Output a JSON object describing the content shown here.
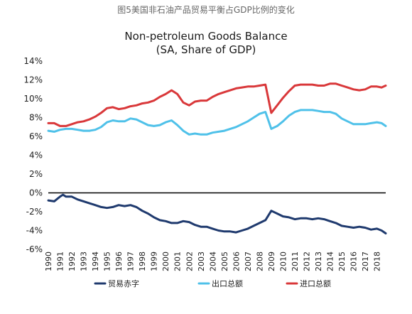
{
  "caption": "图5美国非石油产品贸易平衡占GDP比例的变化",
  "chart_data": {
    "type": "line",
    "title": "Non-petroleum Goods Balance",
    "subtitle": "(SA, Share of GDP)",
    "xlabel": "",
    "ylabel": "",
    "x_range": [
      1990,
      2018.75
    ],
    "ylim": [
      -6,
      14
    ],
    "y_ticks": [
      -6,
      -4,
      -2,
      0,
      2,
      4,
      6,
      8,
      10,
      12,
      14
    ],
    "y_tick_labels": [
      "-6%",
      "-4%",
      "-2%",
      "0%",
      "2%",
      "4%",
      "6%",
      "8%",
      "10%",
      "12%",
      "14%"
    ],
    "x_tick_labels": [
      "1990",
      "1991",
      "1992",
      "1993",
      "1994",
      "1995",
      "1996",
      "1997",
      "1998",
      "1999",
      "2000",
      "2001",
      "2002",
      "2003",
      "2004",
      "2005",
      "2006",
      "2007",
      "2008",
      "2009",
      "2010",
      "2011",
      "2012",
      "2013",
      "2014",
      "2015",
      "2016",
      "2017",
      "2018"
    ],
    "grid": false,
    "legend_position": "bottom",
    "series": [
      {
        "name": "贸易赤字",
        "color": "#1f3a6e",
        "points": [
          [
            1990,
            -0.8
          ],
          [
            1990.5,
            -0.9
          ],
          [
            1991,
            -0.4
          ],
          [
            1991.25,
            -0.2
          ],
          [
            1991.5,
            -0.4
          ],
          [
            1992,
            -0.4
          ],
          [
            1992.5,
            -0.7
          ],
          [
            1993,
            -0.9
          ],
          [
            1993.5,
            -1.1
          ],
          [
            1994,
            -1.3
          ],
          [
            1994.5,
            -1.5
          ],
          [
            1995,
            -1.6
          ],
          [
            1995.5,
            -1.5
          ],
          [
            1996,
            -1.3
          ],
          [
            1996.5,
            -1.4
          ],
          [
            1997,
            -1.3
          ],
          [
            1997.5,
            -1.5
          ],
          [
            1998,
            -1.9
          ],
          [
            1998.5,
            -2.2
          ],
          [
            1999,
            -2.6
          ],
          [
            1999.5,
            -2.9
          ],
          [
            2000,
            -3.0
          ],
          [
            2000.5,
            -3.2
          ],
          [
            2001,
            -3.2
          ],
          [
            2001.5,
            -3.0
          ],
          [
            2002,
            -3.1
          ],
          [
            2002.5,
            -3.4
          ],
          [
            2003,
            -3.6
          ],
          [
            2003.5,
            -3.6
          ],
          [
            2004,
            -3.8
          ],
          [
            2004.5,
            -4.0
          ],
          [
            2005,
            -4.1
          ],
          [
            2005.5,
            -4.1
          ],
          [
            2006,
            -4.2
          ],
          [
            2006.5,
            -4.0
          ],
          [
            2007,
            -3.8
          ],
          [
            2007.5,
            -3.5
          ],
          [
            2008,
            -3.2
          ],
          [
            2008.5,
            -2.9
          ],
          [
            2009,
            -1.9
          ],
          [
            2009.5,
            -2.2
          ],
          [
            2010,
            -2.5
          ],
          [
            2010.5,
            -2.6
          ],
          [
            2011,
            -2.8
          ],
          [
            2011.5,
            -2.7
          ],
          [
            2012,
            -2.7
          ],
          [
            2012.5,
            -2.8
          ],
          [
            2013,
            -2.7
          ],
          [
            2013.5,
            -2.8
          ],
          [
            2014,
            -3.0
          ],
          [
            2014.5,
            -3.2
          ],
          [
            2015,
            -3.5
          ],
          [
            2015.5,
            -3.6
          ],
          [
            2016,
            -3.7
          ],
          [
            2016.5,
            -3.6
          ],
          [
            2017,
            -3.7
          ],
          [
            2017.5,
            -3.9
          ],
          [
            2018,
            -3.8
          ],
          [
            2018.4,
            -4.0
          ],
          [
            2018.75,
            -4.3
          ]
        ]
      },
      {
        "name": "出口总额",
        "color": "#4fc1e9",
        "points": [
          [
            1990,
            6.6
          ],
          [
            1990.5,
            6.5
          ],
          [
            1991,
            6.7
          ],
          [
            1991.5,
            6.8
          ],
          [
            1992,
            6.8
          ],
          [
            1992.5,
            6.7
          ],
          [
            1993,
            6.6
          ],
          [
            1993.5,
            6.6
          ],
          [
            1994,
            6.7
          ],
          [
            1994.5,
            7.0
          ],
          [
            1995,
            7.5
          ],
          [
            1995.5,
            7.7
          ],
          [
            1996,
            7.6
          ],
          [
            1996.5,
            7.6
          ],
          [
            1997,
            7.9
          ],
          [
            1997.5,
            7.8
          ],
          [
            1998,
            7.5
          ],
          [
            1998.5,
            7.2
          ],
          [
            1999,
            7.1
          ],
          [
            1999.5,
            7.2
          ],
          [
            2000,
            7.5
          ],
          [
            2000.5,
            7.7
          ],
          [
            2001,
            7.2
          ],
          [
            2001.5,
            6.6
          ],
          [
            2002,
            6.2
          ],
          [
            2002.5,
            6.3
          ],
          [
            2003,
            6.2
          ],
          [
            2003.5,
            6.2
          ],
          [
            2004,
            6.4
          ],
          [
            2004.5,
            6.5
          ],
          [
            2005,
            6.6
          ],
          [
            2005.5,
            6.8
          ],
          [
            2006,
            7.0
          ],
          [
            2006.5,
            7.3
          ],
          [
            2007,
            7.6
          ],
          [
            2007.5,
            8.0
          ],
          [
            2008,
            8.4
          ],
          [
            2008.5,
            8.6
          ],
          [
            2009,
            6.8
          ],
          [
            2009.5,
            7.1
          ],
          [
            2010,
            7.6
          ],
          [
            2010.5,
            8.2
          ],
          [
            2011,
            8.6
          ],
          [
            2011.5,
            8.8
          ],
          [
            2012,
            8.8
          ],
          [
            2012.5,
            8.8
          ],
          [
            2013,
            8.7
          ],
          [
            2013.5,
            8.6
          ],
          [
            2014,
            8.6
          ],
          [
            2014.5,
            8.4
          ],
          [
            2015,
            7.9
          ],
          [
            2015.5,
            7.6
          ],
          [
            2016,
            7.3
          ],
          [
            2016.5,
            7.3
          ],
          [
            2017,
            7.3
          ],
          [
            2017.5,
            7.4
          ],
          [
            2018,
            7.5
          ],
          [
            2018.4,
            7.4
          ],
          [
            2018.75,
            7.1
          ]
        ]
      },
      {
        "name": "进口总额",
        "color": "#d9383a",
        "points": [
          [
            1990,
            7.4
          ],
          [
            1990.5,
            7.4
          ],
          [
            1991,
            7.1
          ],
          [
            1991.5,
            7.1
          ],
          [
            1992,
            7.3
          ],
          [
            1992.5,
            7.5
          ],
          [
            1993,
            7.6
          ],
          [
            1993.5,
            7.8
          ],
          [
            1994,
            8.1
          ],
          [
            1994.5,
            8.5
          ],
          [
            1995,
            9.0
          ],
          [
            1995.5,
            9.1
          ],
          [
            1996,
            8.9
          ],
          [
            1996.5,
            9.0
          ],
          [
            1997,
            9.2
          ],
          [
            1997.5,
            9.3
          ],
          [
            1998,
            9.5
          ],
          [
            1998.5,
            9.6
          ],
          [
            1999,
            9.8
          ],
          [
            1999.5,
            10.2
          ],
          [
            2000,
            10.5
          ],
          [
            2000.5,
            10.9
          ],
          [
            2001,
            10.5
          ],
          [
            2001.5,
            9.6
          ],
          [
            2002,
            9.3
          ],
          [
            2002.5,
            9.7
          ],
          [
            2003,
            9.8
          ],
          [
            2003.5,
            9.8
          ],
          [
            2004,
            10.2
          ],
          [
            2004.5,
            10.5
          ],
          [
            2005,
            10.7
          ],
          [
            2005.5,
            10.9
          ],
          [
            2006,
            11.1
          ],
          [
            2006.5,
            11.2
          ],
          [
            2007,
            11.3
          ],
          [
            2007.5,
            11.3
          ],
          [
            2008,
            11.4
          ],
          [
            2008.5,
            11.5
          ],
          [
            2009,
            8.5
          ],
          [
            2009.5,
            9.3
          ],
          [
            2010,
            10.1
          ],
          [
            2010.5,
            10.8
          ],
          [
            2011,
            11.4
          ],
          [
            2011.5,
            11.5
          ],
          [
            2012,
            11.5
          ],
          [
            2012.5,
            11.5
          ],
          [
            2013,
            11.4
          ],
          [
            2013.5,
            11.4
          ],
          [
            2014,
            11.6
          ],
          [
            2014.5,
            11.6
          ],
          [
            2015,
            11.4
          ],
          [
            2015.5,
            11.2
          ],
          [
            2016,
            11.0
          ],
          [
            2016.5,
            10.9
          ],
          [
            2017,
            11.0
          ],
          [
            2017.5,
            11.3
          ],
          [
            2018,
            11.3
          ],
          [
            2018.4,
            11.2
          ],
          [
            2018.75,
            11.4
          ]
        ]
      }
    ]
  }
}
